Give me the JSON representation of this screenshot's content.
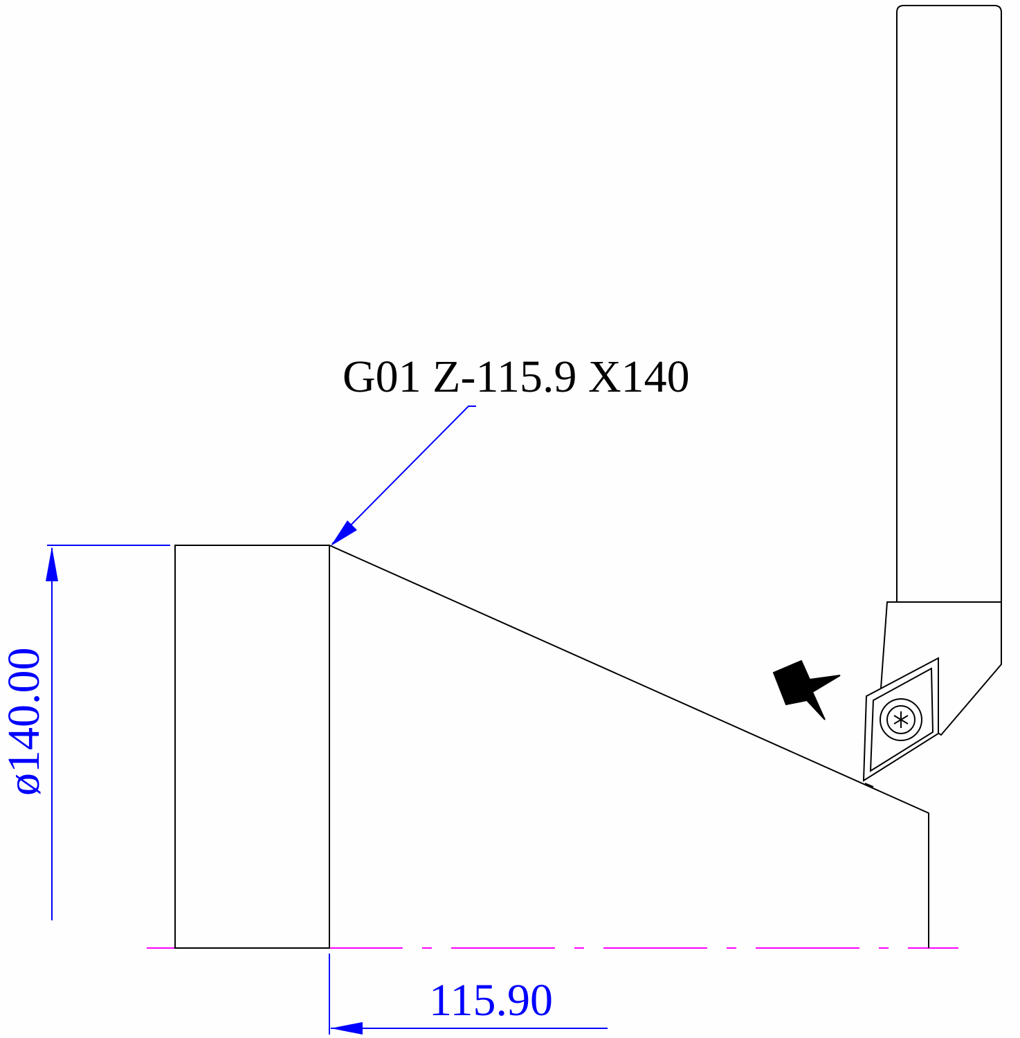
{
  "annotation": {
    "command": "G01 Z-115.9 X140"
  },
  "dimensions": {
    "diameter_label": "ø140.00",
    "length_label": "115.90"
  },
  "colors": {
    "outline": "#000000",
    "dimension": "#0000ff",
    "centerline": "#ff00ff",
    "background": "#fefefe"
  },
  "icons": {
    "feed_direction": "feed-arrow-icon",
    "insert_screw": "torx-screw-icon"
  }
}
